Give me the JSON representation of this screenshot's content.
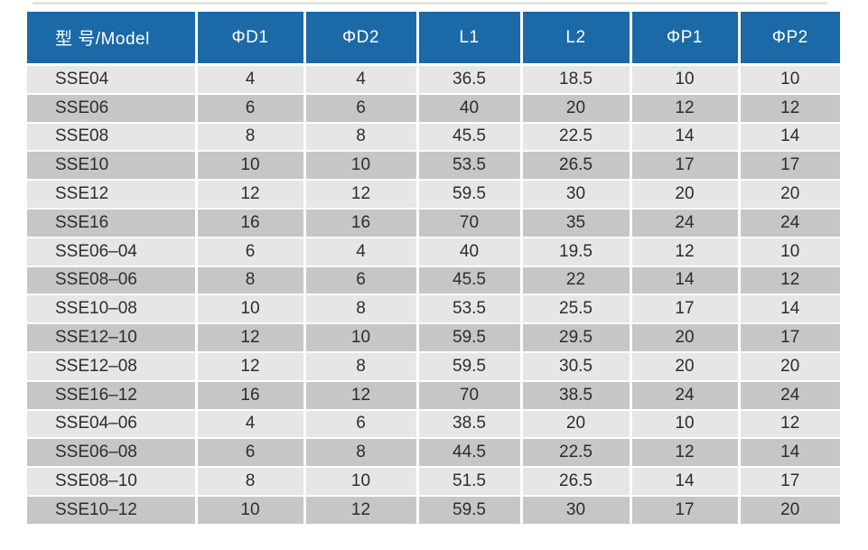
{
  "colors": {
    "header_bg": "#1b6aa7",
    "header_text": "#ffffff",
    "row_light": "#e6e6e4",
    "row_dark": "#c6c6c6",
    "cell_text": "#2d2d2d",
    "divider": "#ffffff"
  },
  "table": {
    "columns": [
      "型 号/Model",
      "ΦD1",
      "ΦD2",
      "L1",
      "L2",
      "ΦP1",
      "ΦP2"
    ],
    "rows": [
      [
        "SSE04",
        "4",
        "4",
        "36.5",
        "18.5",
        "10",
        "10"
      ],
      [
        "SSE06",
        "6",
        "6",
        "40",
        "20",
        "12",
        "12"
      ],
      [
        "SSE08",
        "8",
        "8",
        "45.5",
        "22.5",
        "14",
        "14"
      ],
      [
        "SSE10",
        "10",
        "10",
        "53.5",
        "26.5",
        "17",
        "17"
      ],
      [
        "SSE12",
        "12",
        "12",
        "59.5",
        "30",
        "20",
        "20"
      ],
      [
        "SSE16",
        "16",
        "16",
        "70",
        "35",
        "24",
        "24"
      ],
      [
        "SSE06–04",
        "6",
        "4",
        "40",
        "19.5",
        "12",
        "10"
      ],
      [
        "SSE08–06",
        "8",
        "6",
        "45.5",
        "22",
        "14",
        "12"
      ],
      [
        "SSE10–08",
        "10",
        "8",
        "53.5",
        "25.5",
        "17",
        "14"
      ],
      [
        "SSE12–10",
        "12",
        "10",
        "59.5",
        "29.5",
        "20",
        "17"
      ],
      [
        "SSE12–08",
        "12",
        "8",
        "59.5",
        "30.5",
        "20",
        "20"
      ],
      [
        "SSE16–12",
        "16",
        "12",
        "70",
        "38.5",
        "24",
        "24"
      ],
      [
        "SSE04–06",
        "4",
        "6",
        "38.5",
        "20",
        "10",
        "12"
      ],
      [
        "SSE06–08",
        "6",
        "8",
        "44.5",
        "22.5",
        "12",
        "14"
      ],
      [
        "SSE08–10",
        "8",
        "10",
        "51.5",
        "26.5",
        "14",
        "17"
      ],
      [
        "SSE10–12",
        "10",
        "12",
        "59.5",
        "30",
        "17",
        "20"
      ]
    ]
  }
}
